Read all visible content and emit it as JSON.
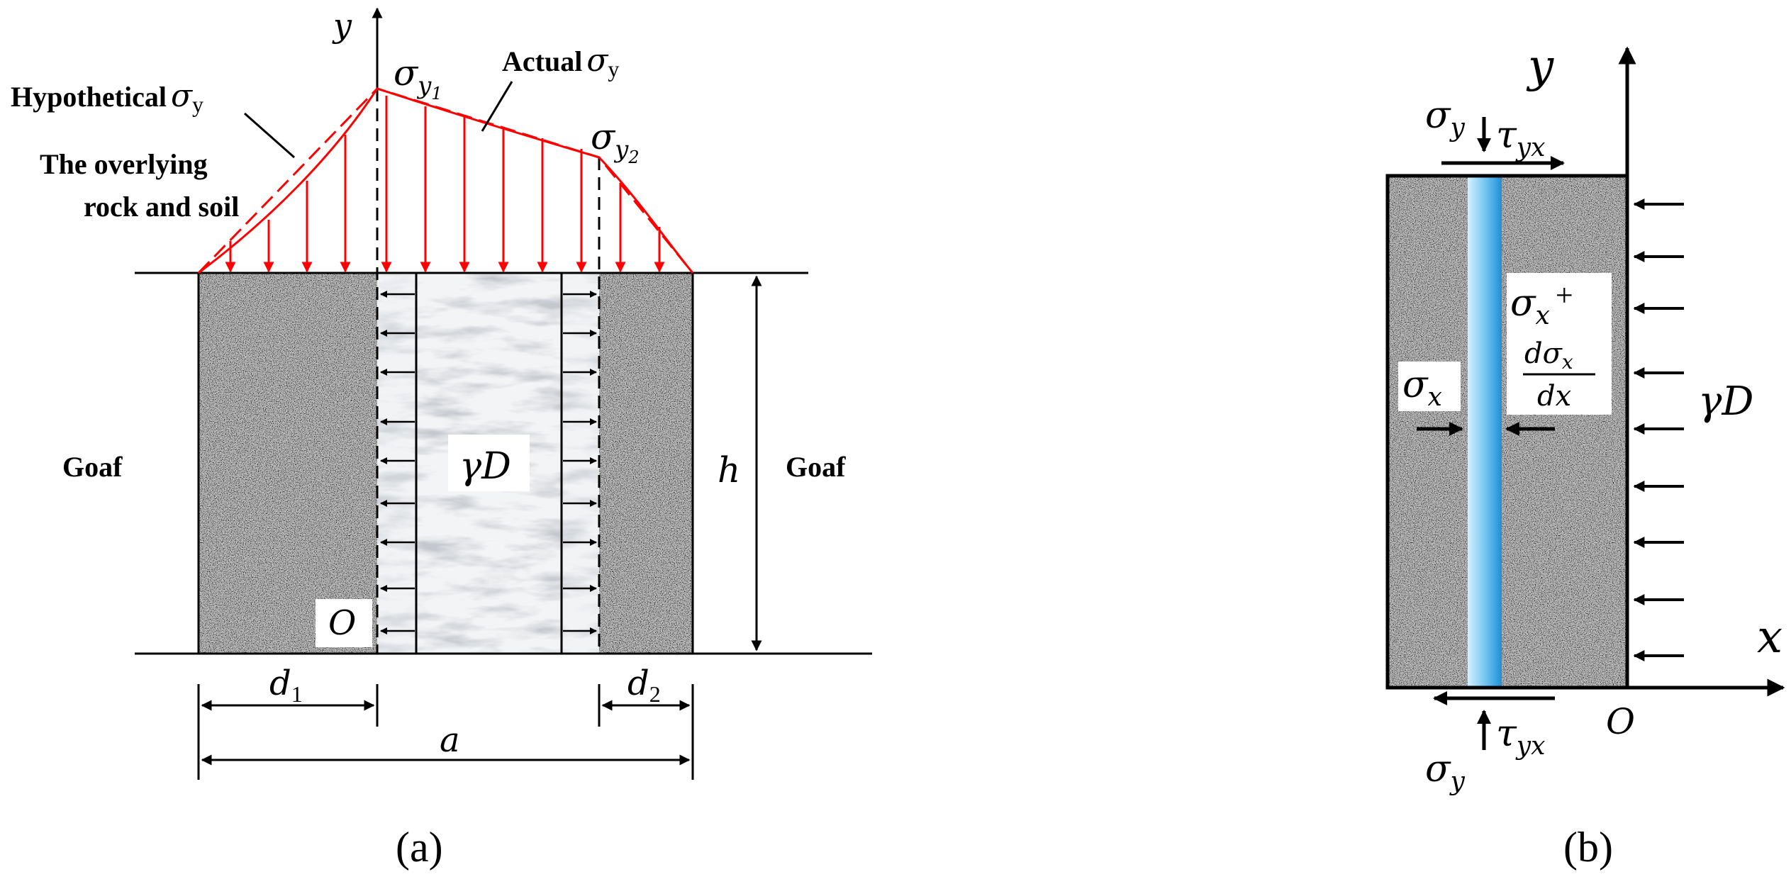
{
  "panel_a": {
    "caption": "(a)",
    "axis_y": "y",
    "sigma": "σ",
    "y_sub": "y",
    "sub_1": "1",
    "sub_2": "2",
    "label_hypothetical": "Hypothetical",
    "label_actual": "Actual",
    "sigma_y_upright": "y",
    "label_overlying_1": "The overlying",
    "label_overlying_2": "rock and soil",
    "label_goaf_left": "Goaf",
    "label_goaf_right": "Goaf",
    "label_gamma_d": "γD",
    "label_h": "h",
    "label_o": "O",
    "label_d": "d",
    "label_a": "a",
    "colors": {
      "load": "#ff0000",
      "line": "#000000"
    }
  },
  "panel_b": {
    "caption": "(b)",
    "axis_y": "y",
    "axis_x": "x",
    "origin": "O",
    "sigma": "σ",
    "sub_y": "y",
    "sub_x": "x",
    "tau": "τ",
    "sub_yx": "yx",
    "plus": "+",
    "d_sigma": "dσ",
    "dx": "dx",
    "label_gamma_d": "γD",
    "colors": {
      "strip": "#3aa7e6",
      "line": "#000000"
    }
  }
}
